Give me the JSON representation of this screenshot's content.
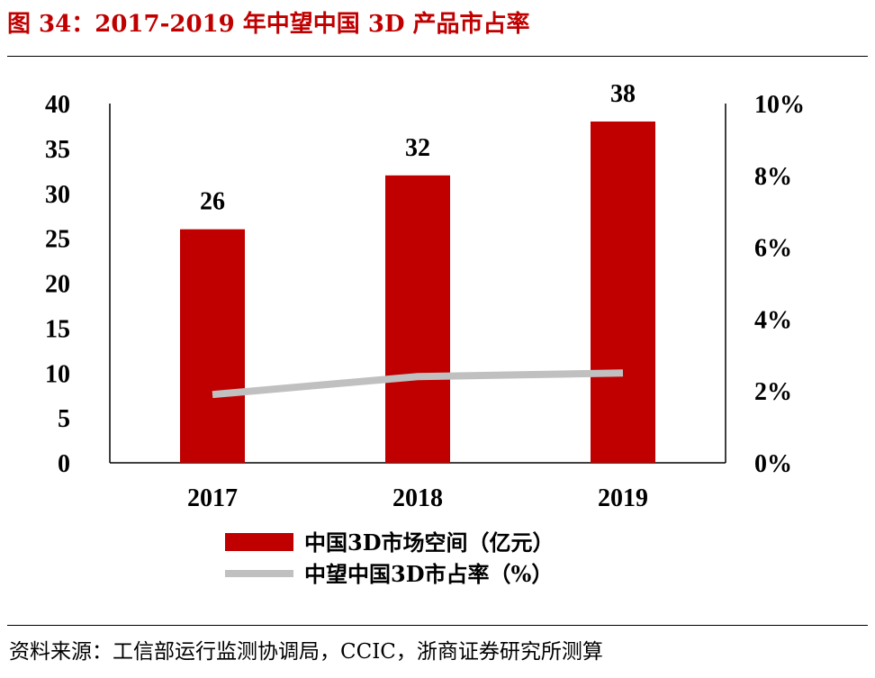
{
  "title": "图 34：2017-2019 年中望中国 3D 产品市占率",
  "source": "资料来源：工信部运行监测协调局，CCIC，浙商证券研究所测算",
  "colors": {
    "bar": "#c00000",
    "line": "#c0c0c0",
    "title": "#c00000"
  },
  "chart_data": {
    "type": "bar",
    "categories": [
      "2017",
      "2018",
      "2019"
    ],
    "series": [
      {
        "name": "中国3D市场空间（亿元）",
        "kind": "bar",
        "axis": "left",
        "values": [
          26,
          32,
          38
        ]
      },
      {
        "name": "中望中国3D市占率（%）",
        "kind": "line",
        "axis": "right",
        "values": [
          1.9,
          2.4,
          2.5
        ]
      }
    ],
    "data_labels": [
      "26",
      "32",
      "38"
    ],
    "y_left": {
      "min": 0,
      "max": 40,
      "ticks": [
        "0",
        "5",
        "10",
        "15",
        "20",
        "25",
        "30",
        "35",
        "40"
      ]
    },
    "y_right": {
      "min": 0,
      "max": 10,
      "ticks": [
        "0%",
        "2%",
        "4%",
        "6%",
        "8%",
        "10%"
      ]
    },
    "legend_position": "bottom"
  }
}
